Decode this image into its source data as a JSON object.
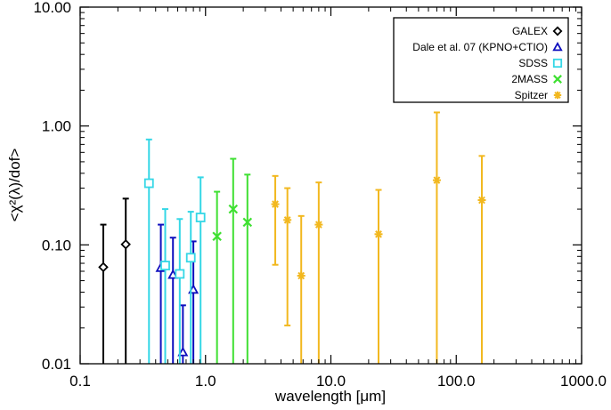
{
  "chart_data": {
    "type": "scatter",
    "xscale": "log",
    "yscale": "log",
    "xlim": [
      0.1,
      1000.0
    ],
    "ylim": [
      0.01,
      10.0
    ],
    "xlabel": "wavelength [μm]",
    "ylabel": "<χ²(λ)/dof>",
    "x_ticks": [
      {
        "value": 0.1,
        "label": "0.1"
      },
      {
        "value": 1.0,
        "label": "1.0"
      },
      {
        "value": 10.0,
        "label": "10.0"
      },
      {
        "value": 100.0,
        "label": "100.0"
      },
      {
        "value": 1000.0,
        "label": "1000.0"
      }
    ],
    "y_ticks": [
      {
        "value": 0.01,
        "label": "0.01"
      },
      {
        "value": 0.1,
        "label": "0.10"
      },
      {
        "value": 1.0,
        "label": "1.00"
      },
      {
        "value": 10.0,
        "label": "10.00"
      }
    ],
    "legend_position": "top-right",
    "series": [
      {
        "name": "GALEX",
        "marker": "diamond",
        "color": "#000000",
        "points": [
          {
            "x": 0.153,
            "y": 0.065,
            "ylo": 0.01,
            "yhi": 0.148
          },
          {
            "x": 0.231,
            "y": 0.101,
            "ylo": 0.01,
            "yhi": 0.245
          }
        ]
      },
      {
        "name": "Dale et al. 07 (KPNO+CTIO)",
        "marker": "triangle",
        "color": "#0f0fbe",
        "points": [
          {
            "x": 0.44,
            "y": 0.064,
            "ylo": 0.01,
            "yhi": 0.148
          },
          {
            "x": 0.55,
            "y": 0.056,
            "ylo": 0.01,
            "yhi": 0.115
          },
          {
            "x": 0.66,
            "y": 0.0125,
            "ylo": 0.01,
            "yhi": 0.031
          },
          {
            "x": 0.8,
            "y": 0.042,
            "ylo": 0.01,
            "yhi": 0.107
          }
        ]
      },
      {
        "name": "SDSS",
        "marker": "square",
        "color": "#35d7e6",
        "points": [
          {
            "x": 0.354,
            "y": 0.33,
            "ylo": 0.01,
            "yhi": 0.77
          },
          {
            "x": 0.477,
            "y": 0.067,
            "ylo": 0.01,
            "yhi": 0.2
          },
          {
            "x": 0.623,
            "y": 0.057,
            "ylo": 0.01,
            "yhi": 0.165
          },
          {
            "x": 0.763,
            "y": 0.078,
            "ylo": 0.01,
            "yhi": 0.19
          },
          {
            "x": 0.913,
            "y": 0.17,
            "ylo": 0.01,
            "yhi": 0.37
          }
        ]
      },
      {
        "name": "2MASS",
        "marker": "x",
        "color": "#3fe032",
        "points": [
          {
            "x": 1.235,
            "y": 0.118,
            "ylo": 0.01,
            "yhi": 0.28
          },
          {
            "x": 1.662,
            "y": 0.2,
            "ylo": 0.01,
            "yhi": 0.53
          },
          {
            "x": 2.159,
            "y": 0.155,
            "ylo": 0.01,
            "yhi": 0.39
          }
        ]
      },
      {
        "name": "Spitzer",
        "marker": "asterisk",
        "color": "#f2b81f",
        "points": [
          {
            "x": 3.6,
            "y": 0.22,
            "ylo": 0.068,
            "yhi": 0.38
          },
          {
            "x": 4.5,
            "y": 0.162,
            "ylo": 0.021,
            "yhi": 0.3
          },
          {
            "x": 5.8,
            "y": 0.055,
            "ylo": 0.01,
            "yhi": 0.175
          },
          {
            "x": 8.0,
            "y": 0.148,
            "ylo": 0.01,
            "yhi": 0.335
          },
          {
            "x": 24.0,
            "y": 0.123,
            "ylo": 0.01,
            "yhi": 0.29
          },
          {
            "x": 70.0,
            "y": 0.35,
            "ylo": 0.01,
            "yhi": 1.3
          },
          {
            "x": 160.0,
            "y": 0.238,
            "ylo": 0.01,
            "yhi": 0.56
          }
        ]
      }
    ]
  }
}
